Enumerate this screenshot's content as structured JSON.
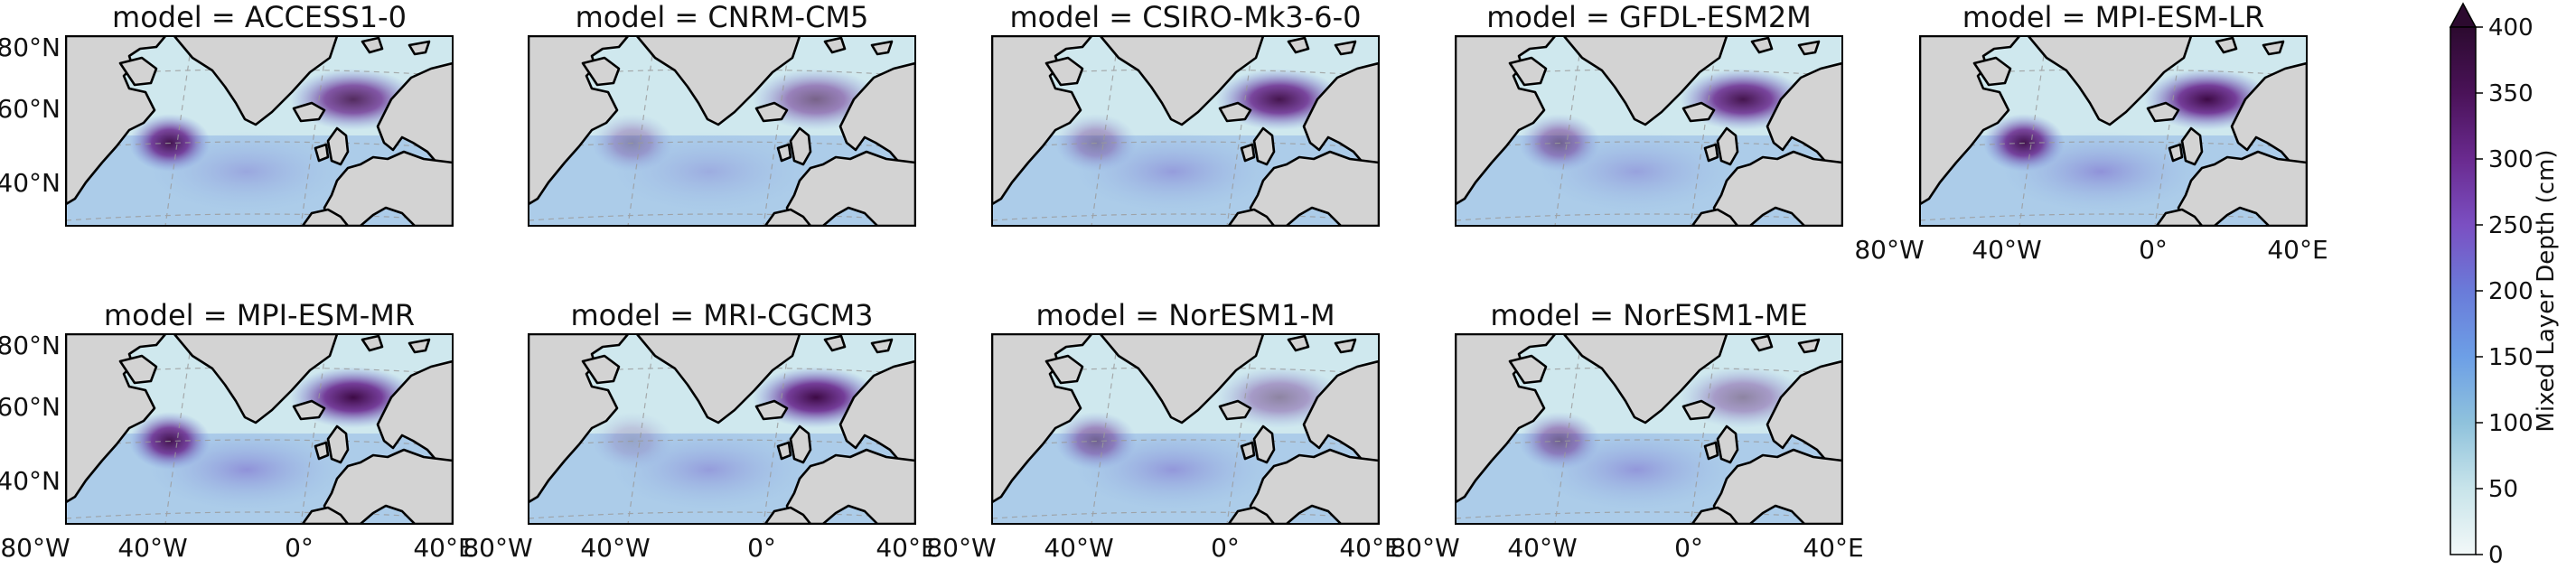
{
  "panels": [
    {
      "title": "model = ACCESS1-0",
      "intensity": {
        "labrador": 0.95,
        "nordic": 0.85,
        "gulfstream": 0.35
      }
    },
    {
      "title": "model = CNRM-CM5",
      "intensity": {
        "labrador": 0.35,
        "nordic": 0.6,
        "gulfstream": 0.3
      }
    },
    {
      "title": "model = CSIRO-Mk3-6-0",
      "intensity": {
        "labrador": 0.4,
        "nordic": 0.95,
        "gulfstream": 0.45
      }
    },
    {
      "title": "model = GFDL-ESM2M",
      "intensity": {
        "labrador": 0.55,
        "nordic": 0.95,
        "gulfstream": 0.4
      }
    },
    {
      "title": "model = MPI-ESM-LR",
      "intensity": {
        "labrador": 0.95,
        "nordic": 1.0,
        "gulfstream": 0.55
      }
    },
    {
      "title": "model = MPI-ESM-MR",
      "intensity": {
        "labrador": 0.95,
        "nordic": 1.0,
        "gulfstream": 0.55
      }
    },
    {
      "title": "model = MRI-CGCM3",
      "intensity": {
        "labrador": 0.2,
        "nordic": 1.0,
        "gulfstream": 0.45
      }
    },
    {
      "title": "model = NorESM1-M",
      "intensity": {
        "labrador": 0.55,
        "nordic": 0.45,
        "gulfstream": 0.5
      }
    },
    {
      "title": "model = NorESM1-ME",
      "intensity": {
        "labrador": 0.55,
        "nordic": 0.45,
        "gulfstream": 0.5
      }
    }
  ],
  "lat_ticks": [
    "80°N",
    "60°N",
    "40°N"
  ],
  "lon_ticks": [
    "80°W",
    "40°W",
    "0°",
    "40°E"
  ],
  "colorbar": {
    "label": "Mixed Layer Depth (cm)",
    "ticks": [
      "0",
      "50",
      "100",
      "150",
      "200",
      "250",
      "300",
      "350",
      "400"
    ],
    "min": 0,
    "max": 400,
    "extend": "max",
    "colors": [
      "#f2f8f8",
      "#c8e4ea",
      "#8fc2dc",
      "#6d9fe6",
      "#6a7bd9",
      "#7b4fc2",
      "#6a2a8f",
      "#4a1258",
      "#2c0a2f"
    ]
  },
  "colors": {
    "land": "#d3d3d3",
    "coast": "#000000",
    "ocean_low": "#cfe8ee",
    "grid": "#9a9a9a"
  }
}
